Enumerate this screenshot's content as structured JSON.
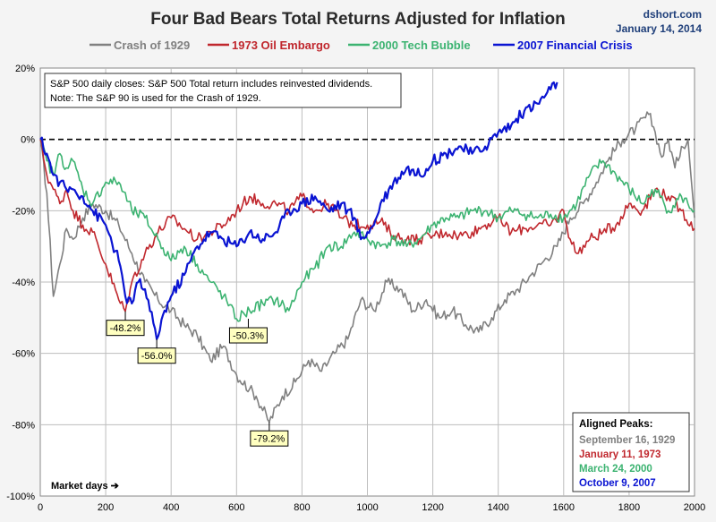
{
  "chart_data": {
    "type": "line",
    "title": "Four Bad Bears Total Returns Adjusted for Inflation",
    "source": "dshort.com",
    "date": "January 14, 2014",
    "xlabel": "Market days ➔",
    "ylabel": "",
    "xlim": [
      0,
      2000
    ],
    "ylim": [
      -100,
      20
    ],
    "xticks": [
      0,
      200,
      400,
      600,
      800,
      1000,
      1200,
      1400,
      1600,
      1800,
      2000
    ],
    "yticks": [
      20,
      0,
      -20,
      -40,
      -60,
      -80,
      -100
    ],
    "ytick_labels": [
      "20%",
      "0%",
      "-20%",
      "-40%",
      "-60%",
      "-80%",
      "-100%"
    ],
    "grid": true,
    "note_lines": [
      "S&P 500 daily closes: S&P 500 Total return includes reinvested dividends.",
      "Note: The S&P 90 is used for the Crash of 1929."
    ],
    "series": [
      {
        "name": "Crash of 1929",
        "color": "#808080",
        "x": [
          0,
          20,
          40,
          60,
          80,
          100,
          130,
          160,
          200,
          240,
          280,
          320,
          360,
          400,
          440,
          480,
          520,
          560,
          600,
          640,
          660,
          700,
          740,
          780,
          820,
          860,
          900,
          940,
          980,
          1020,
          1060,
          1100,
          1140,
          1180,
          1220,
          1260,
          1300,
          1340,
          1380,
          1420,
          1460,
          1500,
          1540,
          1580,
          1620,
          1660,
          1700,
          1740,
          1780,
          1820,
          1860,
          1880,
          1900,
          1920,
          1940,
          1960,
          1980,
          2000
        ],
        "values": [
          0,
          -15,
          -44,
          -35,
          -25,
          -28,
          -22,
          -18,
          -20,
          -24,
          -32,
          -40,
          -45,
          -48,
          -52,
          -55,
          -62,
          -58,
          -66,
          -70,
          -72,
          -79.2,
          -72,
          -68,
          -62,
          -65,
          -60,
          -56,
          -45,
          -48,
          -40,
          -42,
          -48,
          -45,
          -50,
          -48,
          -52,
          -54,
          -50,
          -45,
          -42,
          -38,
          -34,
          -30,
          -22,
          -18,
          -12,
          -5,
          0,
          3,
          7,
          2,
          -5,
          0,
          -8,
          -2,
          0,
          -22
        ]
      },
      {
        "name": "1973 Oil Embargo",
        "color": "#c0272d",
        "x": [
          0,
          20,
          40,
          60,
          80,
          100,
          130,
          160,
          200,
          240,
          260,
          280,
          320,
          360,
          400,
          440,
          480,
          520,
          560,
          600,
          640,
          680,
          720,
          760,
          800,
          840,
          880,
          920,
          960,
          1000,
          1040,
          1080,
          1120,
          1160,
          1200,
          1240,
          1280,
          1320,
          1360,
          1400,
          1440,
          1480,
          1520,
          1560,
          1600,
          1620,
          1640,
          1680,
          1720,
          1760,
          1800,
          1840,
          1880,
          1920,
          1960,
          2000
        ],
        "values": [
          0,
          -10,
          -14,
          -18,
          -14,
          -20,
          -24,
          -26,
          -35,
          -45,
          -48.2,
          -40,
          -32,
          -26,
          -22,
          -25,
          -28,
          -26,
          -24,
          -20,
          -16,
          -18,
          -18,
          -20,
          -16,
          -20,
          -18,
          -22,
          -24,
          -24,
          -23,
          -27,
          -28,
          -28,
          -27,
          -26,
          -27,
          -26,
          -24,
          -22,
          -26,
          -25,
          -24,
          -24,
          -20,
          -28,
          -32,
          -28,
          -26,
          -24,
          -18,
          -20,
          -14,
          -16,
          -20,
          -25
        ]
      },
      {
        "name": "2000 Tech Bubble",
        "color": "#3cb371",
        "x": [
          0,
          20,
          40,
          60,
          80,
          100,
          130,
          160,
          200,
          240,
          280,
          320,
          360,
          400,
          440,
          480,
          520,
          560,
          600,
          640,
          680,
          720,
          760,
          800,
          840,
          880,
          920,
          960,
          1000,
          1040,
          1080,
          1120,
          1160,
          1200,
          1240,
          1280,
          1320,
          1360,
          1400,
          1440,
          1480,
          1520,
          1560,
          1600,
          1640,
          1680,
          1720,
          1760,
          1800,
          1840,
          1880,
          1920,
          1960,
          2000
        ],
        "values": [
          0,
          -6,
          -10,
          -4,
          -8,
          -6,
          -14,
          -18,
          -12,
          -12,
          -20,
          -22,
          -28,
          -34,
          -30,
          -35,
          -40,
          -44,
          -50.3,
          -48,
          -46,
          -45,
          -48,
          -40,
          -36,
          -30,
          -30,
          -26,
          -28,
          -30,
          -28,
          -30,
          -28,
          -24,
          -22,
          -22,
          -20,
          -20,
          -22,
          -20,
          -21,
          -22,
          -21,
          -22,
          -18,
          -10,
          -6,
          -10,
          -14,
          -18,
          -14,
          -20,
          -16,
          -20
        ]
      },
      {
        "name": "2007 Financial Crisis",
        "color": "#0a14d2",
        "x": [
          0,
          20,
          40,
          60,
          80,
          100,
          130,
          160,
          200,
          240,
          260,
          280,
          300,
          320,
          356,
          380,
          400,
          440,
          480,
          520,
          560,
          600,
          640,
          680,
          720,
          760,
          800,
          840,
          880,
          920,
          960,
          980,
          1000,
          1020,
          1040,
          1080,
          1120,
          1160,
          1200,
          1240,
          1280,
          1320,
          1360,
          1400,
          1440,
          1480,
          1520,
          1560,
          1580
        ],
        "values": [
          0,
          -4,
          -10,
          -12,
          -14,
          -14,
          -16,
          -20,
          -24,
          -34,
          -44,
          -46,
          -40,
          -42,
          -56.0,
          -48,
          -44,
          -38,
          -30,
          -26,
          -28,
          -30,
          -26,
          -28,
          -26,
          -20,
          -18,
          -16,
          -20,
          -18,
          -22,
          -28,
          -26,
          -24,
          -18,
          -12,
          -8,
          -10,
          -6,
          -4,
          -2,
          -4,
          -2,
          2,
          4,
          8,
          10,
          14,
          16
        ]
      }
    ],
    "callouts": [
      {
        "label": "-48.2%",
        "x": 260,
        "y": -48.2,
        "series": "1973 Oil Embargo"
      },
      {
        "label": "-56.0%",
        "x": 356,
        "y": -56.0,
        "series": "2007 Financial Crisis"
      },
      {
        "label": "-50.3%",
        "x": 636,
        "y": -50.3,
        "series": "2000 Tech Bubble"
      },
      {
        "label": "-79.2%",
        "x": 700,
        "y": -79.2,
        "series": "Crash of 1929"
      }
    ],
    "aligned_peaks": {
      "heading": "Aligned Peaks:",
      "items": [
        {
          "label": "September 16, 1929",
          "color": "#808080"
        },
        {
          "label": "January 11, 1973",
          "color": "#c0272d"
        },
        {
          "label": "March 24, 2000",
          "color": "#3cb371"
        },
        {
          "label": "October 9, 2007",
          "color": "#0a14d2"
        }
      ]
    }
  }
}
